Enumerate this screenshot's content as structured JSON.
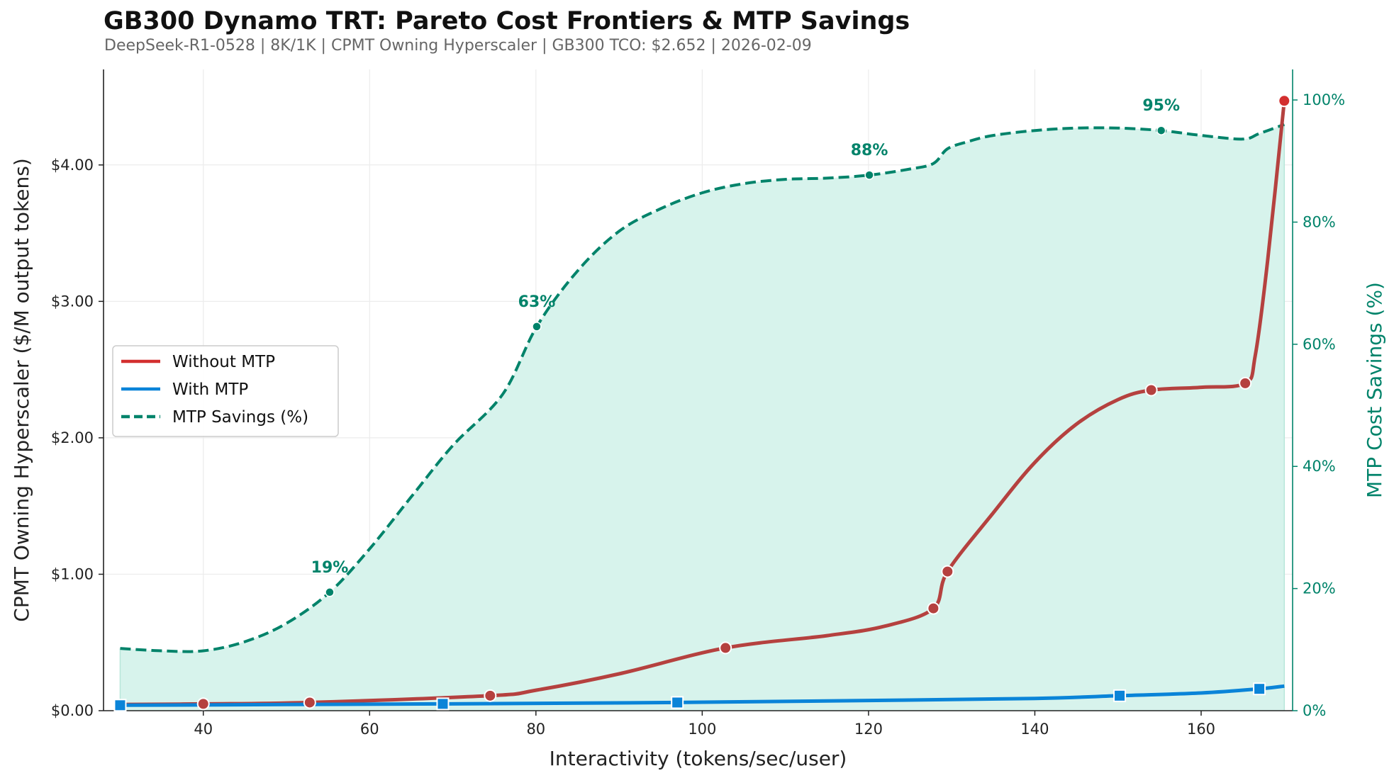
{
  "title": "GB300 Dynamo TRT: Pareto Cost Frontiers & MTP Savings",
  "subtitle": "DeepSeek-R1-0528  |  8K/1K  |  CPMT Owning Hyperscaler  |  GB300 TCO: $2.652  |  2026-02-09",
  "colors": {
    "without_mtp": "#b5413f",
    "without_mtp_legend": "#d32f2f",
    "with_mtp": "#0a84d8",
    "savings": "#00836a",
    "fill": "#d7f3ec"
  },
  "chart_data": {
    "type": "line",
    "xlabel": "Interactivity (tokens/sec/user)",
    "ylabel": "CPMT Owning Hyperscaler ($/M output tokens)",
    "y2label": "MTP Cost Savings (%)",
    "xlim": [
      28,
      171
    ],
    "ylim": [
      0,
      4.7
    ],
    "y2lim": [
      0,
      105
    ],
    "xticks": [
      40,
      60,
      80,
      100,
      120,
      140,
      160
    ],
    "xtick_labels": [
      "40",
      "60",
      "80",
      "100",
      "120",
      "140",
      "160"
    ],
    "yticks": [
      0,
      1,
      2,
      3,
      4
    ],
    "ytick_labels": [
      "$0.00",
      "$1.00",
      "$2.00",
      "$3.00",
      "$4.00"
    ],
    "y2ticks": [
      0,
      20,
      40,
      60,
      80,
      100
    ],
    "y2tick_labels": [
      "0%",
      "20%",
      "40%",
      "60%",
      "80%",
      "100%"
    ],
    "grid": true,
    "legend_position": "center-left",
    "series": [
      {
        "name": "Without MTP",
        "axis": "left",
        "markers": [
          [
            40,
            0.05
          ],
          [
            52.8,
            0.06
          ],
          [
            74.5,
            0.11
          ],
          [
            102.8,
            0.46
          ],
          [
            127.8,
            0.75
          ],
          [
            129.5,
            1.02
          ],
          [
            154,
            2.35
          ],
          [
            165.3,
            2.4
          ],
          [
            170,
            4.47
          ]
        ],
        "curve": [
          [
            30,
            0.045
          ],
          [
            40,
            0.05
          ],
          [
            52.8,
            0.06
          ],
          [
            74.5,
            0.11
          ],
          [
            80,
            0.15
          ],
          [
            90,
            0.27
          ],
          [
            102.8,
            0.46
          ],
          [
            115,
            0.55
          ],
          [
            122,
            0.62
          ],
          [
            127.8,
            0.75
          ],
          [
            129.5,
            1.02
          ],
          [
            135,
            1.45
          ],
          [
            140,
            1.82
          ],
          [
            145,
            2.1
          ],
          [
            150,
            2.28
          ],
          [
            154,
            2.35
          ],
          [
            160,
            2.37
          ],
          [
            165.3,
            2.4
          ],
          [
            166.5,
            2.6
          ],
          [
            168,
            3.3
          ],
          [
            170,
            4.47
          ]
        ]
      },
      {
        "name": "With MTP",
        "axis": "left",
        "markers": [
          [
            30,
            0.04
          ],
          [
            68.8,
            0.05
          ],
          [
            97,
            0.06
          ],
          [
            150.2,
            0.11
          ],
          [
            167,
            0.16
          ]
        ],
        "curve": [
          [
            30,
            0.04
          ],
          [
            50,
            0.045
          ],
          [
            68.8,
            0.05
          ],
          [
            97,
            0.06
          ],
          [
            120,
            0.075
          ],
          [
            140,
            0.09
          ],
          [
            150.2,
            0.11
          ],
          [
            160,
            0.13
          ],
          [
            167,
            0.16
          ],
          [
            170,
            0.18
          ]
        ]
      },
      {
        "name": "MTP Savings (%)",
        "axis": "right",
        "markers": [
          [
            55.2,
            19.4
          ],
          [
            80.1,
            62.9
          ],
          [
            120.1,
            87.7
          ],
          [
            155.2,
            95.0
          ]
        ],
        "curve": [
          [
            30,
            10.2
          ],
          [
            35,
            9.8
          ],
          [
            40,
            9.8
          ],
          [
            45,
            11.3
          ],
          [
            50,
            14.3
          ],
          [
            55.2,
            19.4
          ],
          [
            60,
            26.5
          ],
          [
            65,
            35.0
          ],
          [
            70,
            43.4
          ],
          [
            76,
            51.8
          ],
          [
            80.1,
            62.9
          ],
          [
            85,
            72.0
          ],
          [
            90,
            78.5
          ],
          [
            95,
            82.2
          ],
          [
            100,
            84.8
          ],
          [
            105,
            86.3
          ],
          [
            110,
            87.0
          ],
          [
            115,
            87.2
          ],
          [
            120.1,
            87.7
          ],
          [
            125,
            88.7
          ],
          [
            127.8,
            89.6
          ],
          [
            129.5,
            92.0
          ],
          [
            132,
            93.2
          ],
          [
            135,
            94.2
          ],
          [
            140,
            95.0
          ],
          [
            145,
            95.4
          ],
          [
            150,
            95.4
          ],
          [
            155.2,
            95.0
          ],
          [
            160,
            94.2
          ],
          [
            165,
            93.6
          ],
          [
            167,
            94.5
          ],
          [
            170,
            96.0
          ]
        ]
      }
    ],
    "annotations": [
      {
        "text": "19%",
        "x": 55.2,
        "y": 19.4
      },
      {
        "text": "63%",
        "x": 80.1,
        "y": 62.9
      },
      {
        "text": "88%",
        "x": 120.1,
        "y": 87.7
      },
      {
        "text": "95%",
        "x": 155.2,
        "y": 95.0
      }
    ],
    "legend": [
      "Without MTP",
      "With MTP",
      "MTP Savings (%)"
    ]
  }
}
